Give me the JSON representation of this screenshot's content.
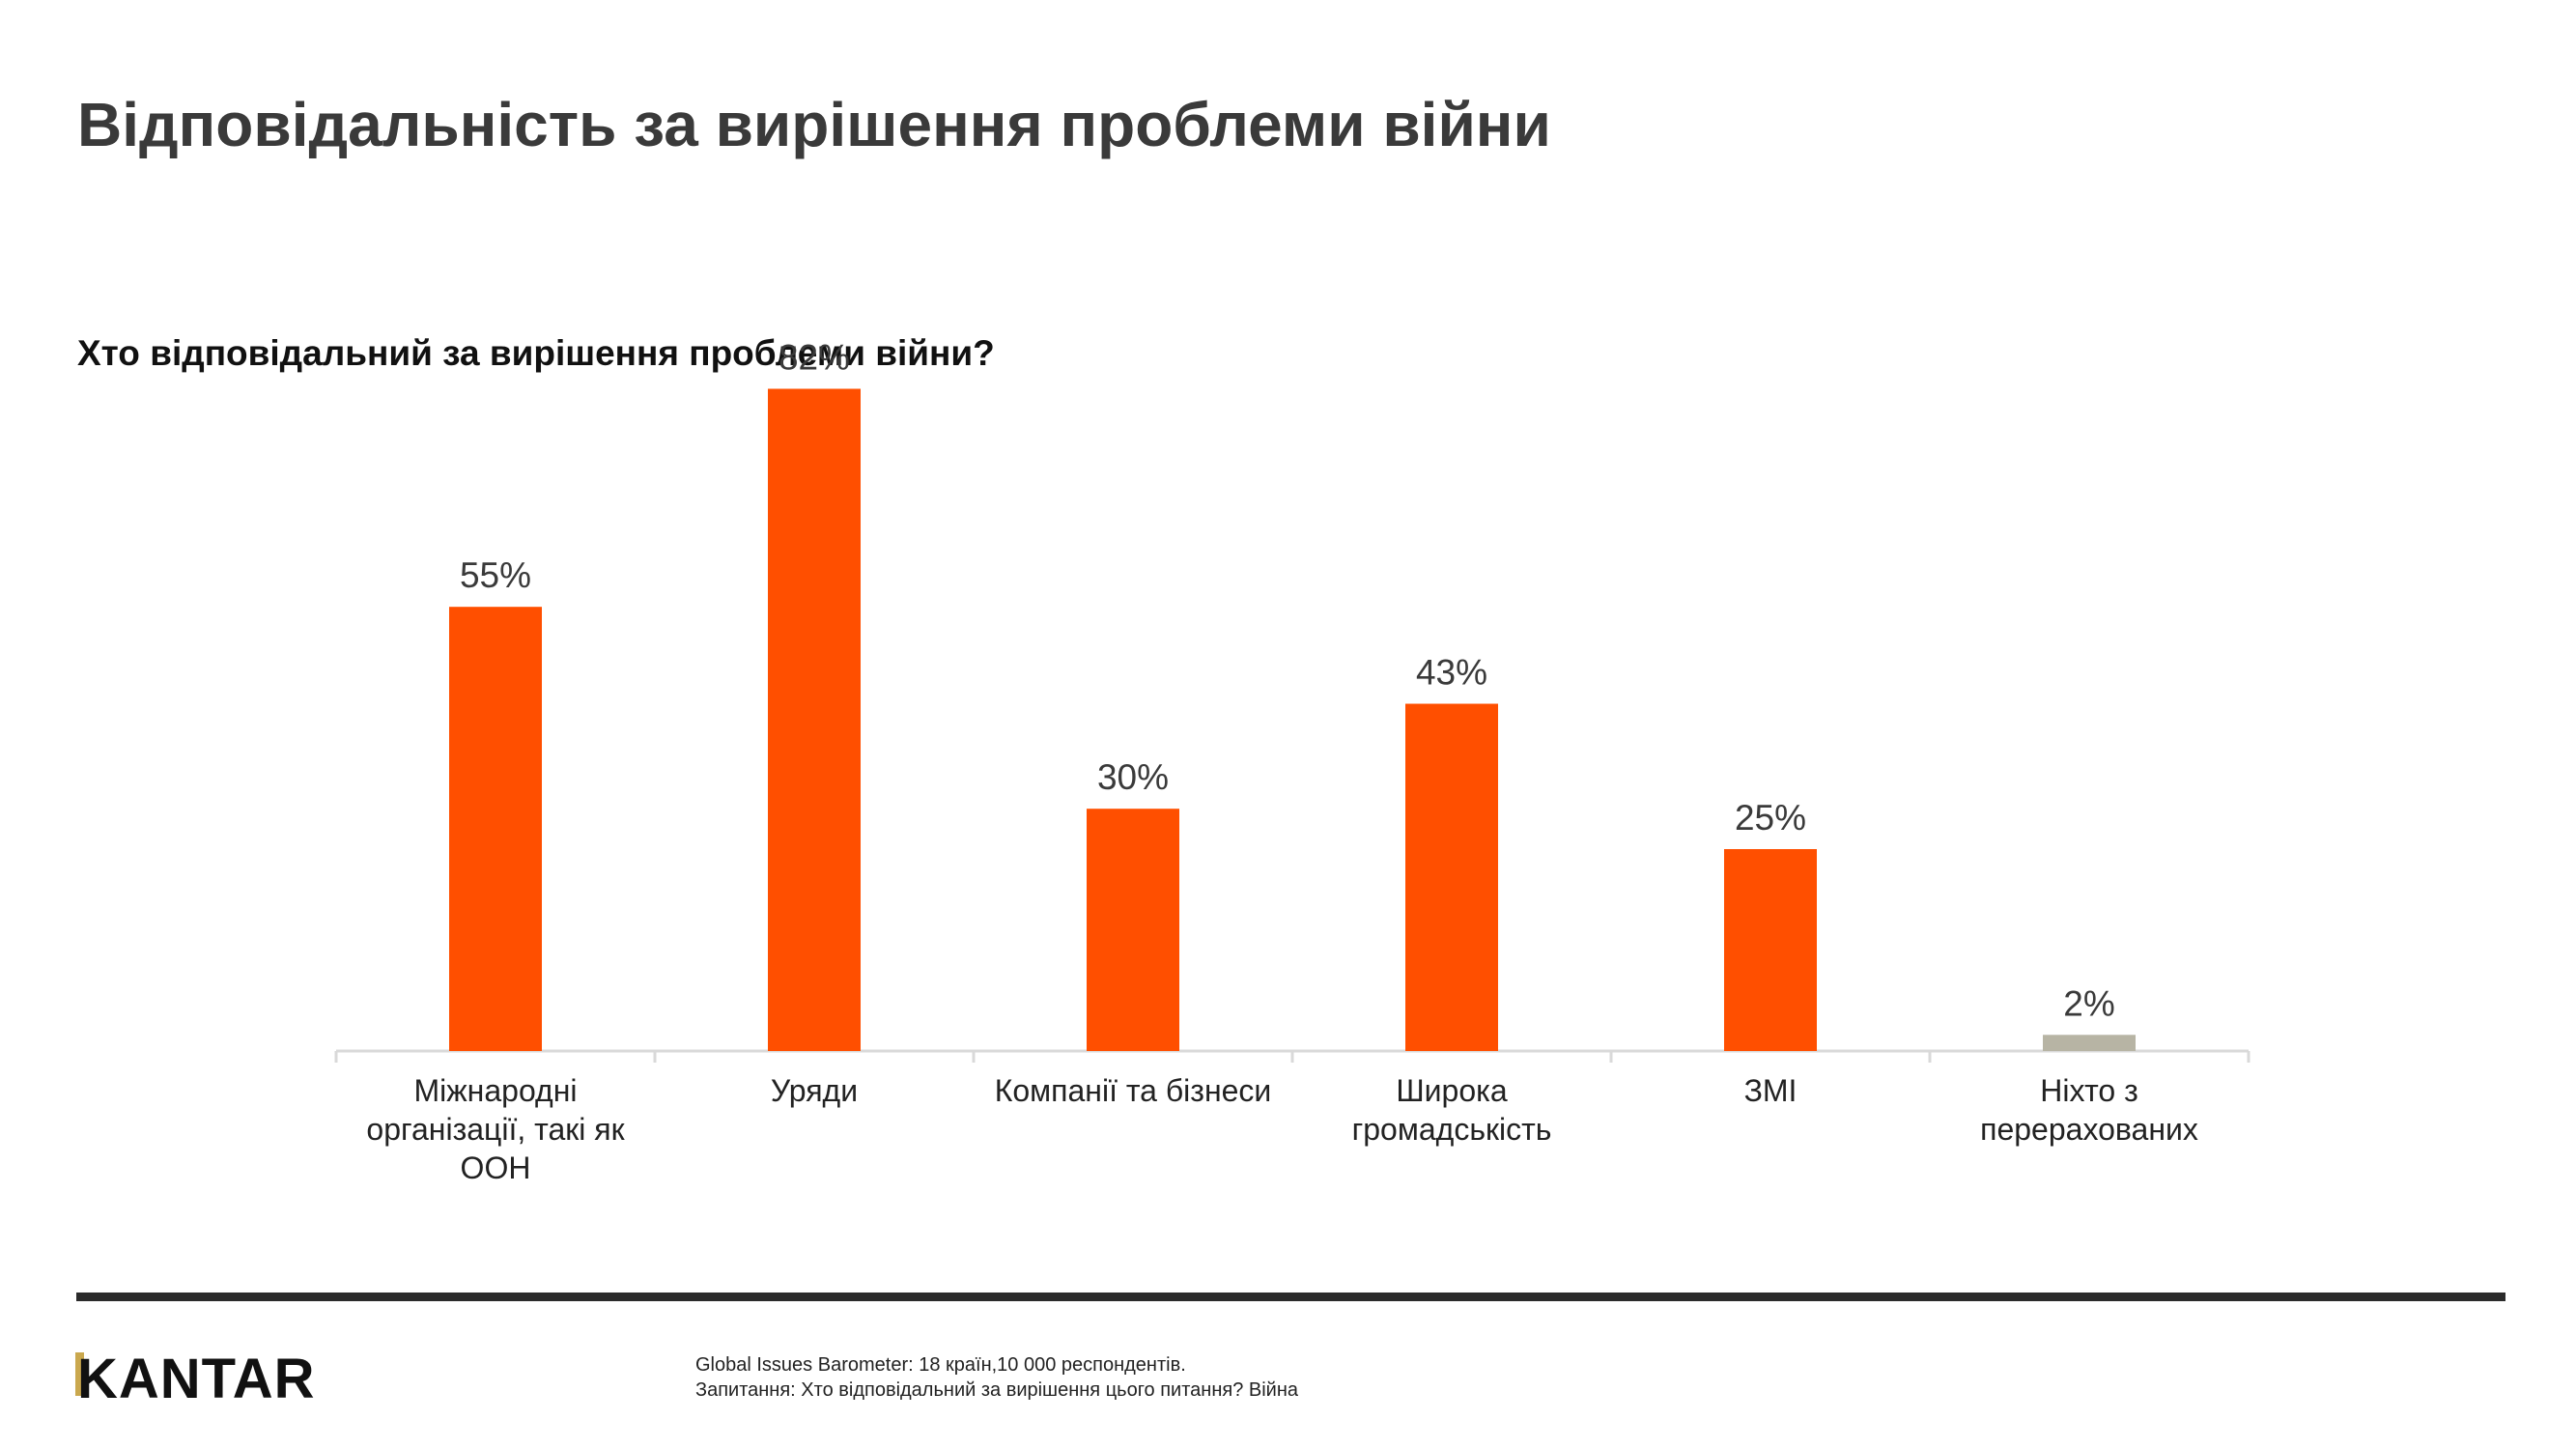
{
  "page": {
    "title": "Відповідальність за вирішення проблеми війни",
    "subtitle": "Хто відповідальний за вирішення проблеми війни?"
  },
  "footer": {
    "logo_text": "KANTAR",
    "source_line1": "Global Issues Barometer: 18 країн,10 000 респондентів.",
    "source_line2": "Запитання: Хто відповідальний за вирішення цього питання? Війна"
  },
  "colors": {
    "accent": "#ff4f00",
    "muted": "#b7b4a4",
    "axis": "#d9d9d9",
    "text": "#3a3a3a"
  },
  "chart_data": {
    "type": "bar",
    "categories": [
      "Міжнародні організації, такі як ООН",
      "Уряди",
      "Компанії та бізнеси",
      "Широка громадськість",
      "ЗМІ",
      "Ніхто з перерахованих"
    ],
    "category_lines": [
      [
        "Міжнародні",
        "організації, такі як",
        "ООН"
      ],
      [
        "Уряди"
      ],
      [
        "Компанії та бізнеси"
      ],
      [
        "Широка",
        "громадськість"
      ],
      [
        "ЗМІ"
      ],
      [
        "Ніхто з",
        "перерахованих"
      ]
    ],
    "values": [
      55,
      82,
      30,
      43,
      25,
      2
    ],
    "value_labels": [
      "55%",
      "82%",
      "30%",
      "43%",
      "25%",
      "2%"
    ],
    "bar_colors": [
      "#ff4f00",
      "#ff4f00",
      "#ff4f00",
      "#ff4f00",
      "#ff4f00",
      "#b7b4a4"
    ],
    "ylim": [
      0,
      100
    ],
    "grid": false,
    "legend": "none",
    "xlabel": "",
    "ylabel": ""
  }
}
